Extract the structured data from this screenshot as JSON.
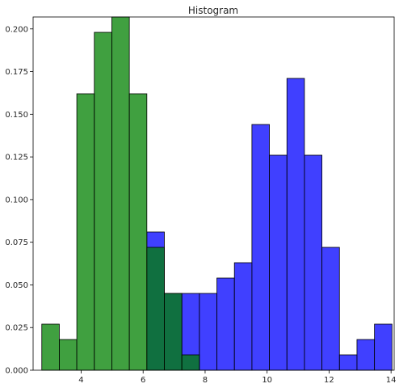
{
  "chart_data": {
    "type": "bar",
    "title": "Histogram",
    "xlabel": "",
    "ylabel": "",
    "xlim": [
      2.45,
      14.1
    ],
    "ylim": [
      0,
      0.207
    ],
    "xticks": [
      4,
      6,
      8,
      10,
      12,
      14
    ],
    "yticks": [
      0.0,
      0.025,
      0.05,
      0.075,
      0.1,
      0.125,
      0.15,
      0.175,
      0.2
    ],
    "ytick_labels": [
      "0.000",
      "0.025",
      "0.050",
      "0.075",
      "0.100",
      "0.125",
      "0.150",
      "0.175",
      "0.200"
    ],
    "grid": false,
    "bin_width": 0.565,
    "series": [
      {
        "color": "#0000ff",
        "bins": [
          {
            "x0": 6.12,
            "value": 0.081
          },
          {
            "x0": 6.685,
            "value": 0.045
          },
          {
            "x0": 7.25,
            "value": 0.045
          },
          {
            "x0": 7.815,
            "value": 0.045
          },
          {
            "x0": 8.38,
            "value": 0.054
          },
          {
            "x0": 8.945,
            "value": 0.063
          },
          {
            "x0": 9.51,
            "value": 0.144
          },
          {
            "x0": 10.075,
            "value": 0.126
          },
          {
            "x0": 10.64,
            "value": 0.171
          },
          {
            "x0": 11.205,
            "value": 0.126
          },
          {
            "x0": 11.77,
            "value": 0.072
          },
          {
            "x0": 12.335,
            "value": 0.009
          },
          {
            "x0": 12.9,
            "value": 0.018
          },
          {
            "x0": 13.465,
            "value": 0.027
          }
        ]
      },
      {
        "color": "#008000",
        "bins": [
          {
            "x0": 2.73,
            "value": 0.027
          },
          {
            "x0": 3.295,
            "value": 0.018
          },
          {
            "x0": 3.86,
            "value": 0.162
          },
          {
            "x0": 4.425,
            "value": 0.198
          },
          {
            "x0": 4.99,
            "value": 0.207
          },
          {
            "x0": 5.555,
            "value": 0.162
          },
          {
            "x0": 6.12,
            "value": 0.072
          },
          {
            "x0": 6.685,
            "value": 0.045
          },
          {
            "x0": 7.25,
            "value": 0.009
          }
        ]
      }
    ]
  }
}
